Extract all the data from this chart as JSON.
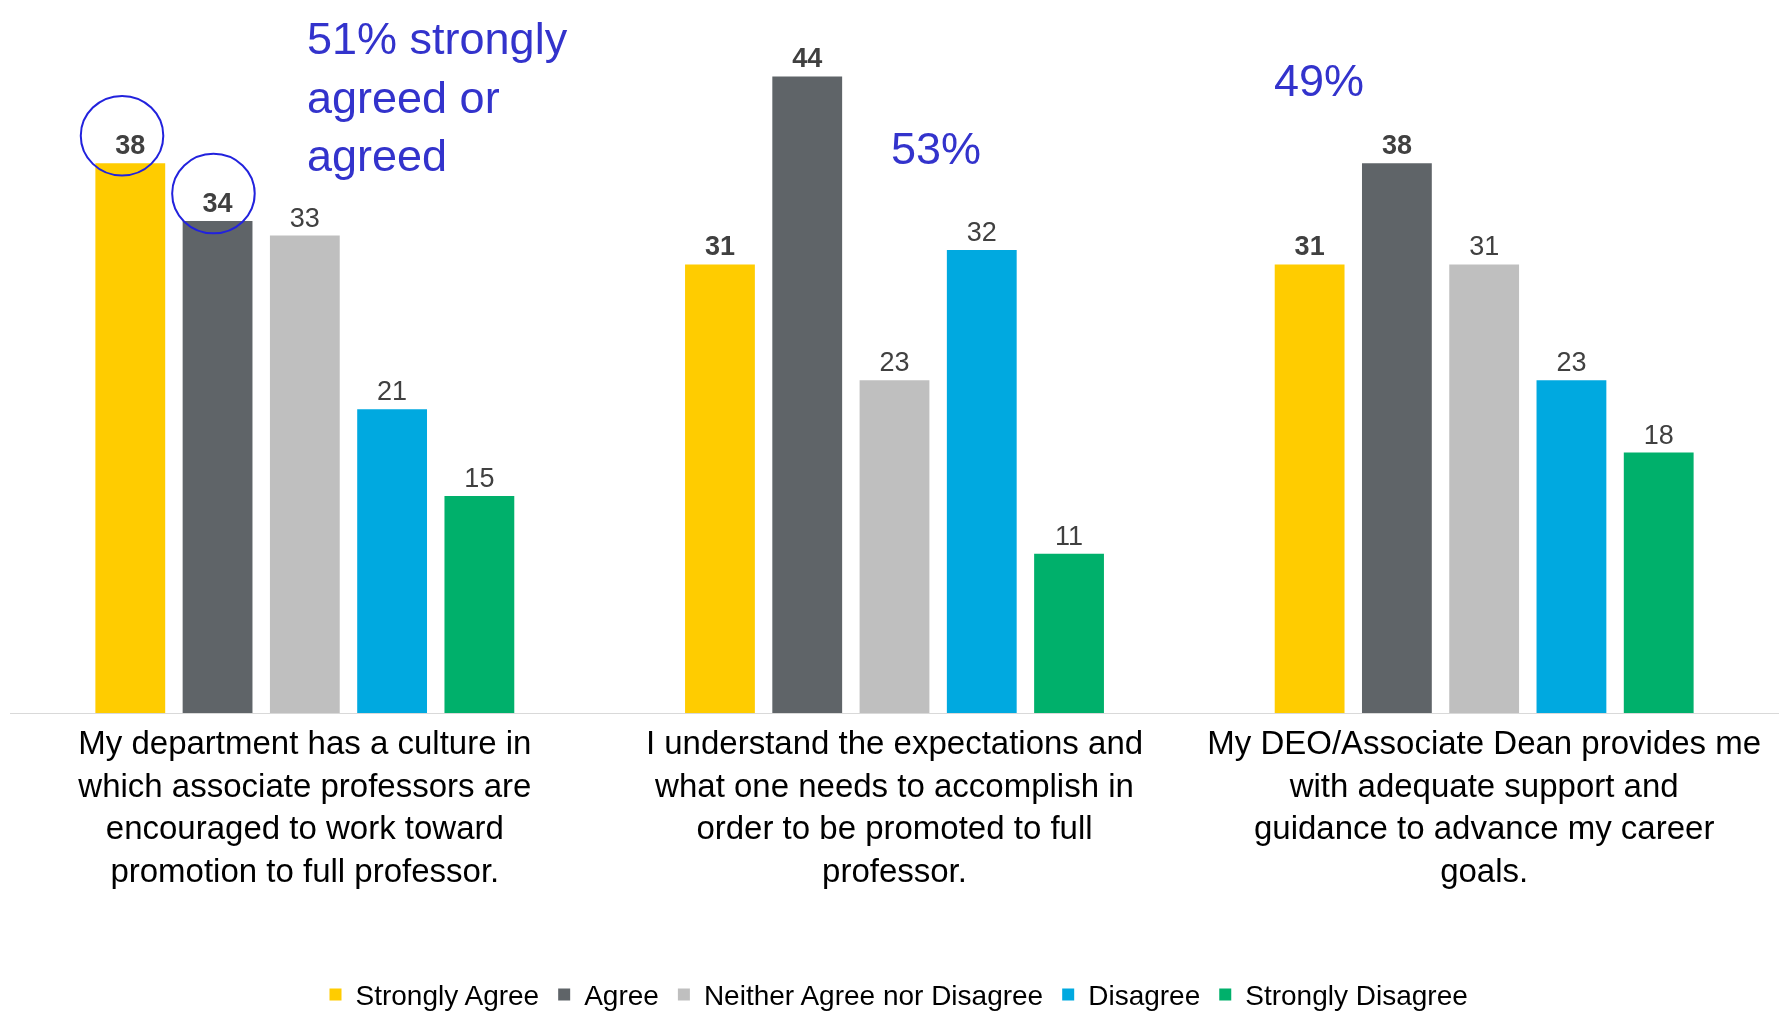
{
  "chart_data": {
    "type": "bar",
    "categories": [
      "My department has a culture in which associate professors are encouraged to work toward promotion to full professor.",
      "I understand the expectations and what one needs to accomplish in order to be promoted to full professor.",
      "My DEO/Associate Dean provides me with adequate support and guidance to advance my career goals."
    ],
    "series": [
      {
        "name": "Strongly Agree",
        "color": "#ffcc00",
        "values": [
          38,
          31,
          31
        ]
      },
      {
        "name": "Agree",
        "color": "#5f6468",
        "values": [
          34,
          44,
          38
        ]
      },
      {
        "name": "Neither Agree nor Disagree",
        "color": "#bfbfbf",
        "values": [
          33,
          23,
          31
        ]
      },
      {
        "name": "Disagree",
        "color": "#00a9e0",
        "values": [
          21,
          32,
          23
        ]
      },
      {
        "name": "Strongly Disagree",
        "color": "#00b06b",
        "values": [
          15,
          11,
          18
        ]
      }
    ],
    "data_labels": true,
    "annotations": [
      "51% strongly agreed or agreed",
      "53%",
      "49%"
    ],
    "legend": "bottom"
  }
}
